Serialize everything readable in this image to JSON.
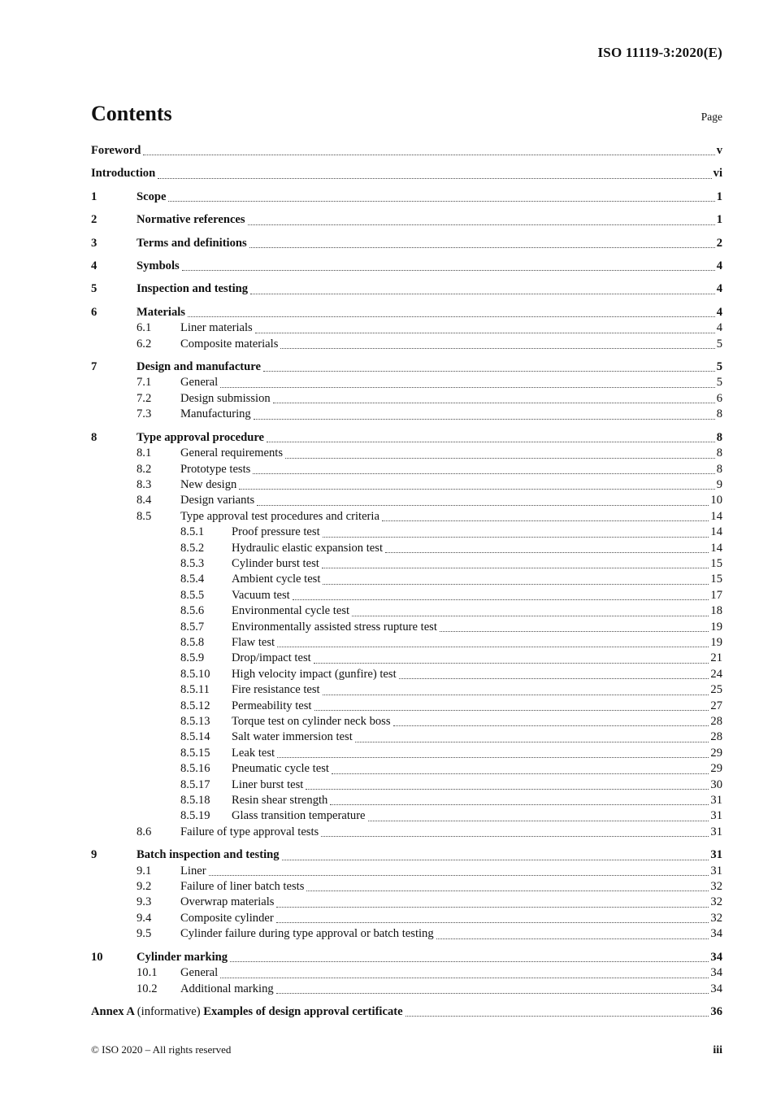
{
  "header": {
    "doc_ref": "ISO 11119-3:2020(E)"
  },
  "toc": {
    "title": "Contents",
    "page_column_label": "Page",
    "entries": [
      {
        "level": 0,
        "major": true,
        "num": "",
        "title": "Foreword",
        "page": "v"
      },
      {
        "level": 0,
        "major": true,
        "num": "",
        "title": "Introduction",
        "page": "vi"
      },
      {
        "level": 0,
        "major": true,
        "num": "1",
        "title": "Scope",
        "page": "1"
      },
      {
        "level": 0,
        "major": true,
        "num": "2",
        "title": "Normative references",
        "page": "1"
      },
      {
        "level": 0,
        "major": true,
        "num": "3",
        "title": "Terms and definitions",
        "page": "2"
      },
      {
        "level": 0,
        "major": true,
        "num": "4",
        "title": "Symbols",
        "page": "4"
      },
      {
        "level": 0,
        "major": true,
        "num": "5",
        "title": "Inspection and testing",
        "page": "4"
      },
      {
        "level": 0,
        "major": true,
        "num": "6",
        "title": "Materials",
        "page": "4"
      },
      {
        "level": 1,
        "major": false,
        "num": "6.1",
        "title": "Liner materials",
        "page": "4"
      },
      {
        "level": 1,
        "major": false,
        "num": "6.2",
        "title": "Composite materials",
        "page": "5"
      },
      {
        "level": 0,
        "major": true,
        "num": "7",
        "title": "Design and manufacture",
        "page": "5"
      },
      {
        "level": 1,
        "major": false,
        "num": "7.1",
        "title": "General",
        "page": "5"
      },
      {
        "level": 1,
        "major": false,
        "num": "7.2",
        "title": "Design submission",
        "page": "6"
      },
      {
        "level": 1,
        "major": false,
        "num": "7.3",
        "title": "Manufacturing",
        "page": "8"
      },
      {
        "level": 0,
        "major": true,
        "num": "8",
        "title": "Type approval procedure",
        "page": "8"
      },
      {
        "level": 1,
        "major": false,
        "num": "8.1",
        "title": "General requirements",
        "page": "8"
      },
      {
        "level": 1,
        "major": false,
        "num": "8.2",
        "title": "Prototype tests",
        "page": "8"
      },
      {
        "level": 1,
        "major": false,
        "num": "8.3",
        "title": "New design",
        "page": "9"
      },
      {
        "level": 1,
        "major": false,
        "num": "8.4",
        "title": "Design variants",
        "page": "10"
      },
      {
        "level": 1,
        "major": false,
        "num": "8.5",
        "title": "Type approval test procedures and criteria",
        "page": "14"
      },
      {
        "level": 2,
        "major": false,
        "num": "8.5.1",
        "title": "Proof pressure test",
        "page": "14"
      },
      {
        "level": 2,
        "major": false,
        "num": "8.5.2",
        "title": "Hydraulic elastic expansion test",
        "page": "14"
      },
      {
        "level": 2,
        "major": false,
        "num": "8.5.3",
        "title": "Cylinder burst test",
        "page": "15"
      },
      {
        "level": 2,
        "major": false,
        "num": "8.5.4",
        "title": "Ambient cycle test",
        "page": "15"
      },
      {
        "level": 2,
        "major": false,
        "num": "8.5.5",
        "title": "Vacuum test",
        "page": "17"
      },
      {
        "level": 2,
        "major": false,
        "num": "8.5.6",
        "title": "Environmental cycle test",
        "page": "18"
      },
      {
        "level": 2,
        "major": false,
        "num": "8.5.7",
        "title": "Environmentally assisted stress rupture test",
        "page": "19"
      },
      {
        "level": 2,
        "major": false,
        "num": "8.5.8",
        "title": "Flaw test",
        "page": "19"
      },
      {
        "level": 2,
        "major": false,
        "num": "8.5.9",
        "title": "Drop/impact test",
        "page": "21"
      },
      {
        "level": 2,
        "major": false,
        "num": "8.5.10",
        "title": "High velocity impact (gunfire) test",
        "page": "24"
      },
      {
        "level": 2,
        "major": false,
        "num": "8.5.11",
        "title": "Fire resistance test",
        "page": "25"
      },
      {
        "level": 2,
        "major": false,
        "num": "8.5.12",
        "title": "Permeability test",
        "page": "27"
      },
      {
        "level": 2,
        "major": false,
        "num": "8.5.13",
        "title": "Torque test on cylinder neck boss",
        "page": "28"
      },
      {
        "level": 2,
        "major": false,
        "num": "8.5.14",
        "title": "Salt water immersion test",
        "page": "28"
      },
      {
        "level": 2,
        "major": false,
        "num": "8.5.15",
        "title": "Leak test",
        "page": "29"
      },
      {
        "level": 2,
        "major": false,
        "num": "8.5.16",
        "title": "Pneumatic cycle test",
        "page": "29"
      },
      {
        "level": 2,
        "major": false,
        "num": "8.5.17",
        "title": "Liner burst test",
        "page": "30"
      },
      {
        "level": 2,
        "major": false,
        "num": "8.5.18",
        "title": "Resin shear strength",
        "page": "31"
      },
      {
        "level": 2,
        "major": false,
        "num": "8.5.19",
        "title": "Glass transition temperature",
        "page": "31"
      },
      {
        "level": 1,
        "major": false,
        "num": "8.6",
        "title": "Failure of type approval tests",
        "page": "31"
      },
      {
        "level": 0,
        "major": true,
        "num": "9",
        "title": "Batch inspection and testing",
        "page": "31"
      },
      {
        "level": 1,
        "major": false,
        "num": "9.1",
        "title": "Liner",
        "page": "31"
      },
      {
        "level": 1,
        "major": false,
        "num": "9.2",
        "title": "Failure of liner batch tests",
        "page": "32"
      },
      {
        "level": 1,
        "major": false,
        "num": "9.3",
        "title": "Overwrap materials",
        "page": "32"
      },
      {
        "level": 1,
        "major": false,
        "num": "9.4",
        "title": "Composite cylinder",
        "page": "32"
      },
      {
        "level": 1,
        "major": false,
        "num": "9.5",
        "title": "Cylinder failure during type approval or batch testing",
        "page": "34"
      },
      {
        "level": 0,
        "major": true,
        "num": "10",
        "title": "Cylinder marking",
        "page": "34"
      },
      {
        "level": 1,
        "major": false,
        "num": "10.1",
        "title": "General",
        "page": "34"
      },
      {
        "level": 1,
        "major": false,
        "num": "10.2",
        "title": "Additional marking",
        "page": "34"
      },
      {
        "level": 0,
        "major": true,
        "num": "",
        "parts": [
          {
            "text": "Annex A ",
            "bold": true
          },
          {
            "text": "(informative) ",
            "bold": false
          },
          {
            "text": "Examples of design approval certificate",
            "bold": true
          }
        ],
        "page": "36"
      }
    ]
  },
  "footer": {
    "copyright": "© ISO 2020 – All rights reserved",
    "page_number": "iii"
  }
}
